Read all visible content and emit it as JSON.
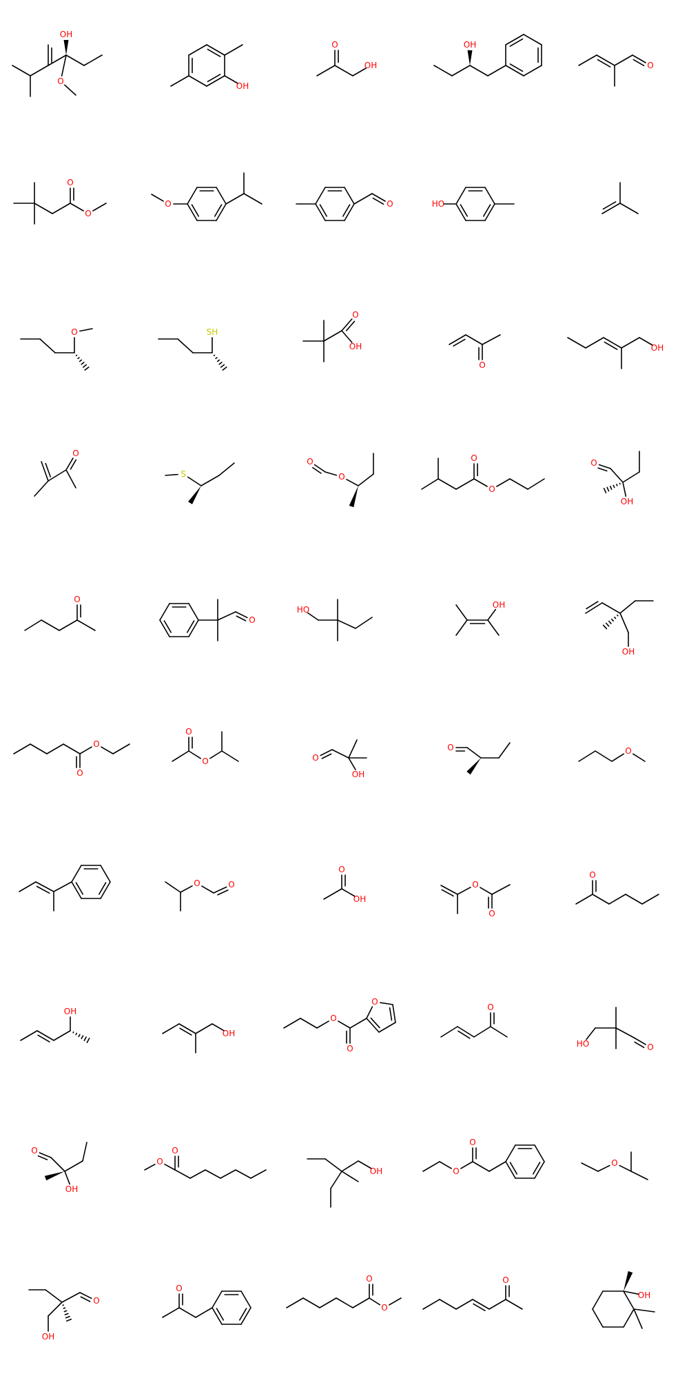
{
  "molecules": [
    {
      "labels": [
        "OH",
        "O"
      ]
    },
    {
      "labels": [
        "OH"
      ]
    },
    {
      "labels": [
        "O",
        "OH"
      ]
    },
    {
      "labels": [
        "OH"
      ]
    },
    {
      "labels": [
        "O"
      ]
    },
    {
      "labels": [
        "O",
        "O"
      ]
    },
    {
      "labels": [
        "O"
      ]
    },
    {
      "labels": [
        "O"
      ]
    },
    {
      "labels": [
        "HO"
      ]
    },
    {
      "labels": []
    },
    {
      "labels": [
        "O"
      ]
    },
    {
      "labels": [
        "SH"
      ]
    },
    {
      "labels": [
        "O",
        "OH"
      ]
    },
    {
      "labels": [
        "O"
      ]
    },
    {
      "labels": [
        "OH"
      ]
    },
    {
      "labels": [
        "O"
      ]
    },
    {
      "labels": [
        "S"
      ]
    },
    {
      "labels": [
        "O",
        "O"
      ]
    },
    {
      "labels": [
        "O",
        "O"
      ]
    },
    {
      "labels": [
        "O",
        "OH"
      ]
    },
    {
      "labels": [
        "O"
      ]
    },
    {
      "labels": [
        "O"
      ]
    },
    {
      "labels": [
        "HO"
      ]
    },
    {
      "labels": [
        "OH"
      ]
    },
    {
      "labels": [
        "OH"
      ]
    },
    {
      "labels": [
        "O",
        "O"
      ]
    },
    {
      "labels": [
        "O",
        "O"
      ]
    },
    {
      "labels": [
        "O",
        "OH"
      ]
    },
    {
      "labels": [
        "O"
      ]
    },
    {
      "labels": [
        "O"
      ]
    },
    {
      "labels": []
    },
    {
      "labels": [
        "O",
        "O"
      ]
    },
    {
      "labels": [
        "O",
        "OH"
      ]
    },
    {
      "labels": [
        "O",
        "O"
      ]
    },
    {
      "labels": [
        "O"
      ]
    },
    {
      "labels": [
        "OH"
      ]
    },
    {
      "labels": [
        "OH"
      ]
    },
    {
      "labels": [
        "O",
        "O",
        "O"
      ]
    },
    {
      "labels": [
        "O"
      ]
    },
    {
      "labels": [
        "HO",
        "O"
      ]
    },
    {
      "labels": [
        "O",
        "OH"
      ]
    },
    {
      "labels": [
        "O",
        "O"
      ]
    },
    {
      "labels": [
        "OH"
      ]
    },
    {
      "labels": [
        "O",
        "O"
      ]
    },
    {
      "labels": [
        "O"
      ]
    },
    {
      "labels": [
        "OH",
        "O"
      ]
    },
    {
      "labels": [
        "O"
      ]
    },
    {
      "labels": [
        "O",
        "O"
      ]
    },
    {
      "labels": [
        "O"
      ]
    },
    {
      "labels": [
        "OH"
      ]
    }
  ]
}
